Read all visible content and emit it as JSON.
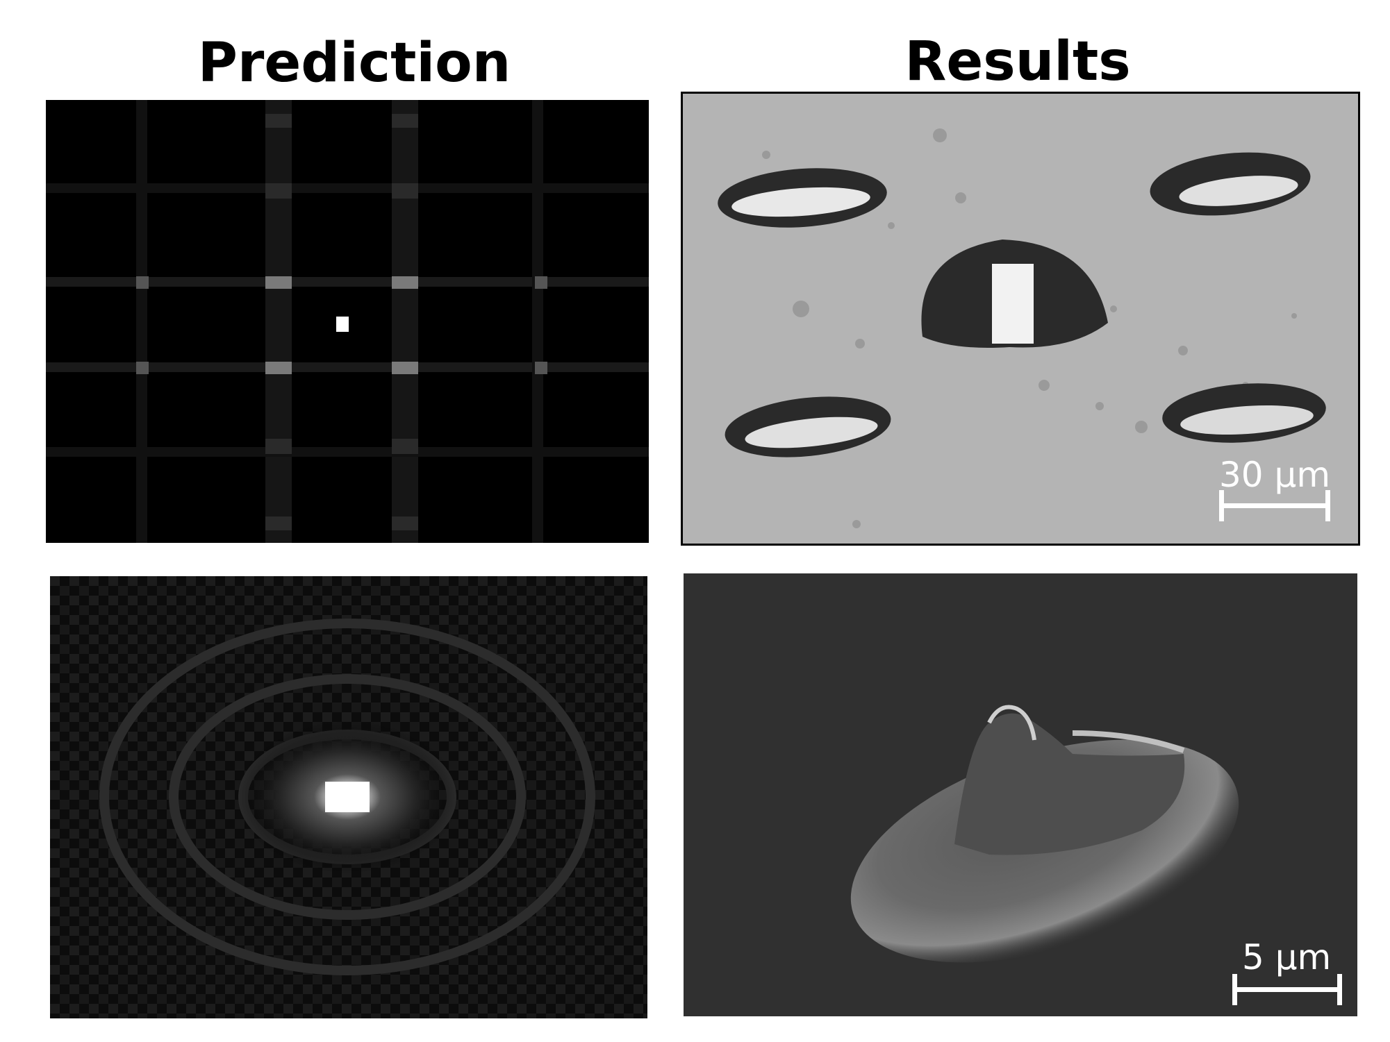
{
  "titles": {
    "prediction": "Prediction",
    "results": "Results"
  },
  "panels": {
    "prediction_top": {
      "kind": "simulated diffraction pattern (grid)"
    },
    "prediction_bottom": {
      "kind": "simulated diffraction pattern (single spot)"
    },
    "results_top": {
      "kind": "optical micrograph of five ablation craters",
      "scale_bar": "30 µm"
    },
    "results_bottom": {
      "kind": "SEM image of single raised structure",
      "scale_bar": "5 µm"
    }
  }
}
